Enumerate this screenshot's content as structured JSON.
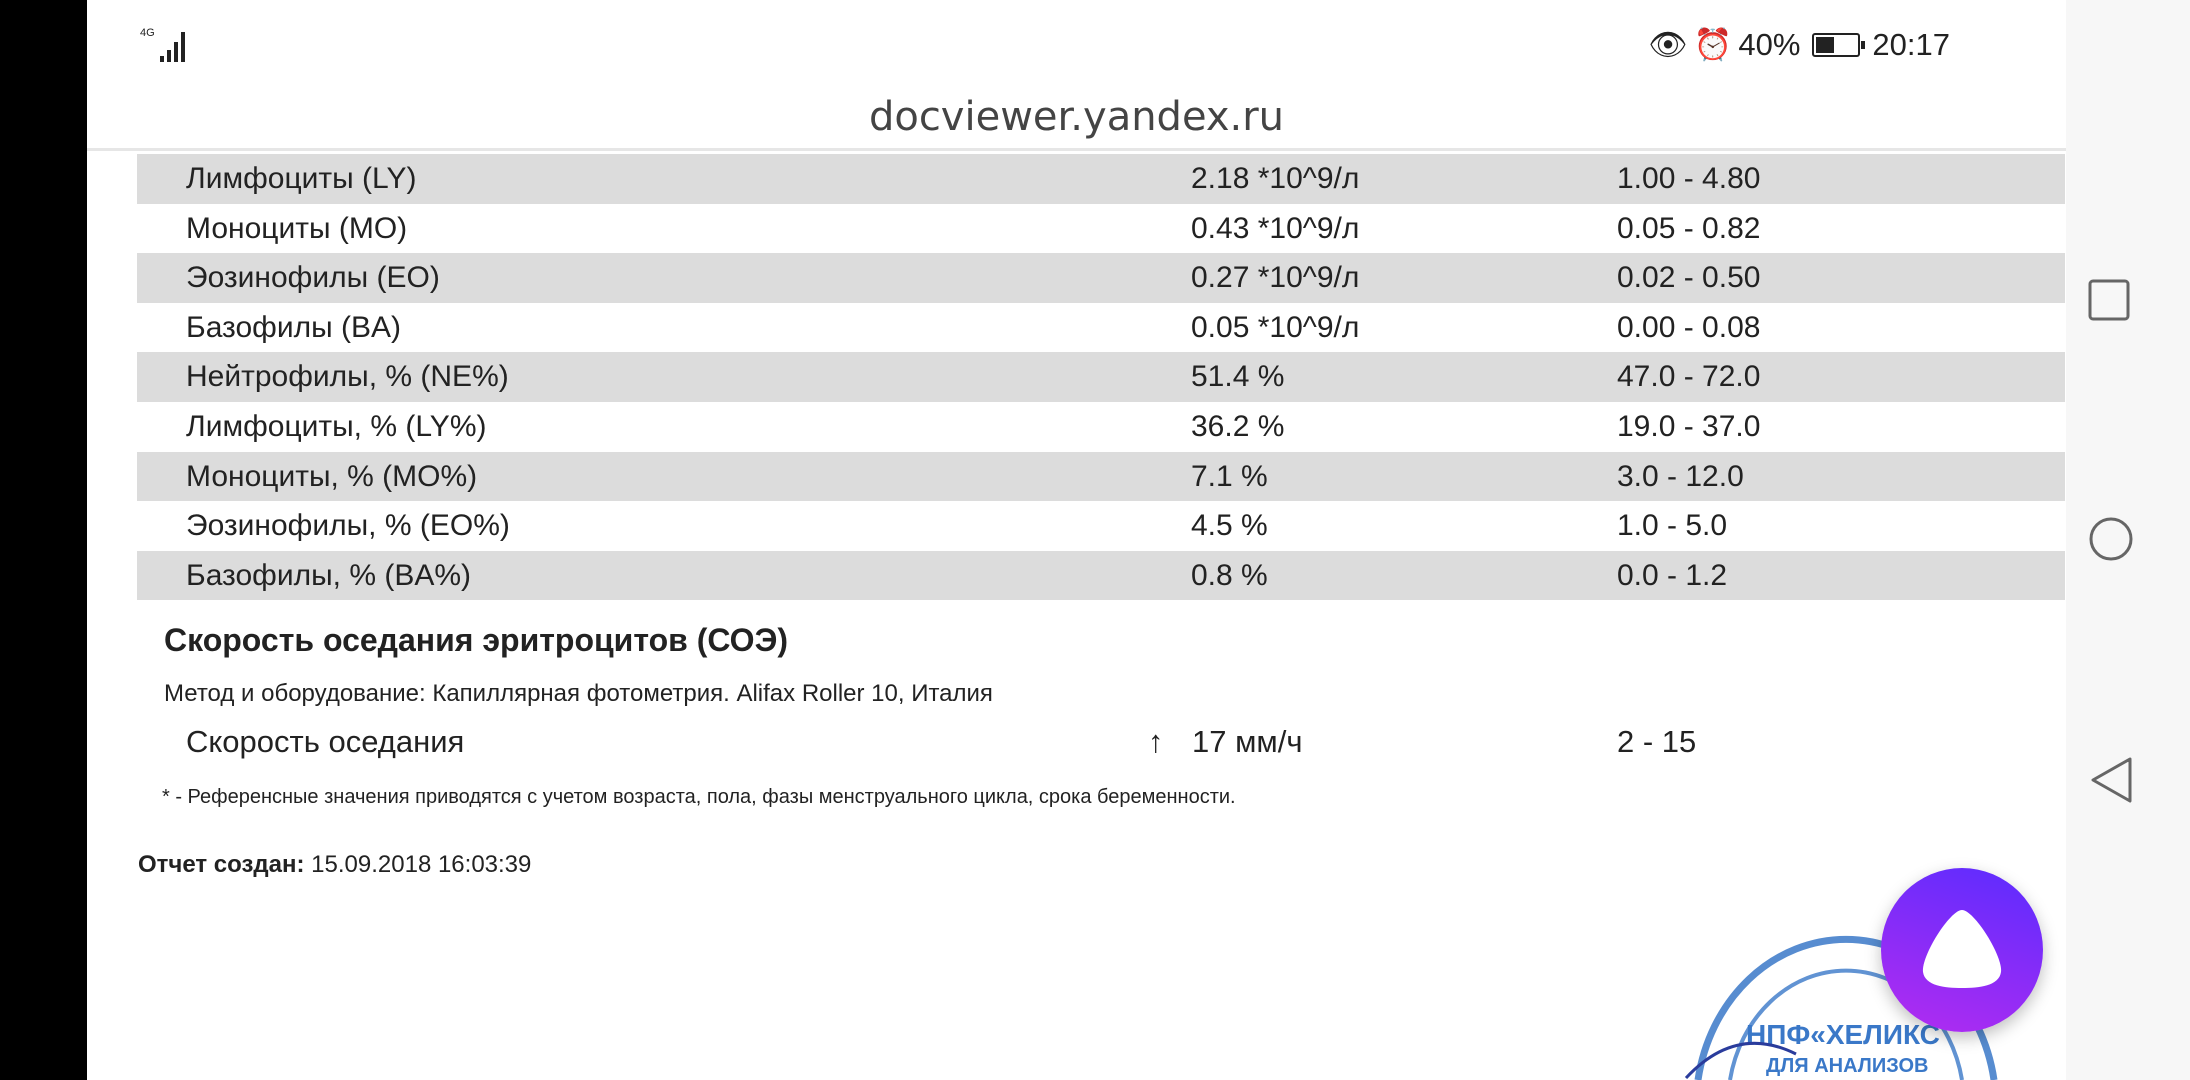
{
  "status_bar": {
    "network": "4G",
    "battery": "40%",
    "time": "20:17",
    "icons": [
      "eye-icon",
      "alarm-icon",
      "battery-icon",
      "signal-icon"
    ]
  },
  "browser": {
    "url": "docviewer.yandex.ru"
  },
  "table": {
    "rows": [
      {
        "name": "Лимфоциты (LY)",
        "value": "2.18 *10^9/л",
        "ref": "1.00 - 4.80"
      },
      {
        "name": "Моноциты (MO)",
        "value": "0.43 *10^9/л",
        "ref": "0.05 - 0.82"
      },
      {
        "name": "Эозинофилы (EO)",
        "value": "0.27 *10^9/л",
        "ref": "0.02 - 0.50"
      },
      {
        "name": "Базофилы (BA)",
        "value": "0.05 *10^9/л",
        "ref": "0.00 - 0.08"
      },
      {
        "name": "Нейтрофилы, % (NE%)",
        "value": "51.4 %",
        "ref": "47.0 - 72.0"
      },
      {
        "name": "Лимфоциты, % (LY%)",
        "value": "36.2 %",
        "ref": "19.0 - 37.0"
      },
      {
        "name": "Моноциты, % (MO%)",
        "value": "7.1 %",
        "ref": "3.0 - 12.0"
      },
      {
        "name": "Эозинофилы, % (EO%)",
        "value": "4.5 %",
        "ref": "1.0 - 5.0"
      },
      {
        "name": "Базофилы, % (BA%)",
        "value": "0.8 %",
        "ref": "0.0 - 1.2"
      }
    ]
  },
  "esr": {
    "title": "Скорость оседания эритроцитов (СОЭ)",
    "method": "Метод и оборудование:  Капиллярная фотометрия. Alifax Roller 10, Италия",
    "name": "Скорость оседания",
    "flag": "↑",
    "value": "17 мм/ч",
    "ref": "2 - 15"
  },
  "footnote": "* - Референсные значения приводятся с учетом возраста, пола, фазы менструального цикла, срока беременности.",
  "report": {
    "label": "Отчет создан:",
    "value": "15.09.2018 16:03:39"
  },
  "stamp": {
    "text": "ограниченной ответственностью НПФ «ХЕЛИКС» для анализов"
  },
  "colors": {
    "row_stripe": "#dcdcdc",
    "alice_accent": "#7b2cf6",
    "stamp": "#3a78c8"
  }
}
